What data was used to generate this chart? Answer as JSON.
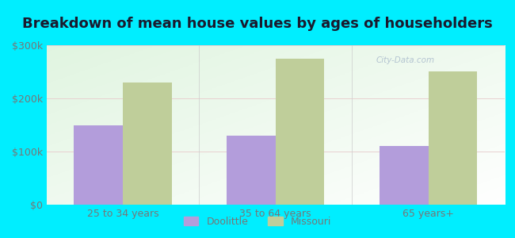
{
  "title": "Breakdown of mean house values by ages of householders",
  "categories": [
    "25 to 34 years",
    "35 to 64 years",
    "65 years+"
  ],
  "doolittle_values": [
    150000,
    130000,
    110000
  ],
  "missouri_values": [
    230000,
    275000,
    250000
  ],
  "doolittle_color": "#b39ddb",
  "missouri_color": "#bfce9a",
  "background_outer": "#00eeff",
  "background_inner": "#e8f5e0",
  "ylim": [
    0,
    300000
  ],
  "yticks": [
    0,
    100000,
    200000,
    300000
  ],
  "ytick_labels": [
    "$0",
    "$100k",
    "$200k",
    "$300k"
  ],
  "bar_width": 0.32,
  "legend_labels": [
    "Doolittle",
    "Missouri"
  ],
  "title_fontsize": 13,
  "tick_fontsize": 9,
  "legend_fontsize": 9,
  "title_color": "#1a1a2e",
  "tick_color": "#777777",
  "watermark_text": "City-Data.com",
  "watermark_color": "#aabbcc"
}
